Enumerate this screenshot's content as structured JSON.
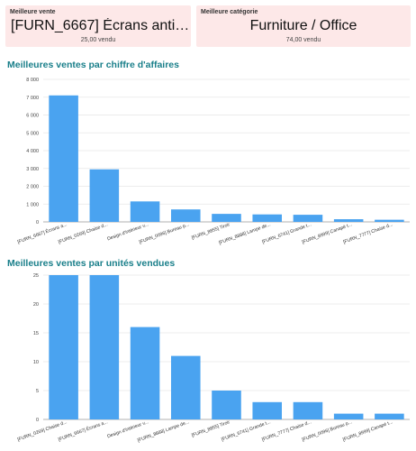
{
  "kpis": [
    {
      "label": "Meilleure vente",
      "value": "[FURN_6667] Écrans anti…",
      "sub": "25,00 vendu"
    },
    {
      "label": "Meilleure catégorie",
      "value": "Furniture / Office",
      "sub": "74,00 vendu"
    }
  ],
  "colors": {
    "accent": "#4aa3f0",
    "title": "#1a7f8a",
    "kpi_bg": "#fde8e8"
  },
  "chart_data": [
    {
      "type": "bar",
      "title": "Meilleures ventes par chiffre d'affaires",
      "xlabel": "",
      "ylabel": "",
      "ylim": [
        0,
        8000
      ],
      "yticks": [
        0,
        1000,
        2000,
        3000,
        4000,
        5000,
        6000,
        7000,
        8000
      ],
      "ytick_labels": [
        "0",
        "1 000",
        "2 000",
        "3 000",
        "4 000",
        "5 000",
        "6 000",
        "7 000",
        "8 000"
      ],
      "categories": [
        "[FURN_6667] Écrans a...",
        "[FURN_0269] Chaise d...",
        "Design d'intérieur v...",
        "[FURN_0096] Bureau p...",
        "[FURN_8855] Tiroir",
        "[FURN_8888] Lampe de...",
        "[FURN_6741] Grande t...",
        "[FURN_8999] Canapé t...",
        "[FURN_7777] Chaise d..."
      ],
      "values": [
        7100,
        2950,
        1150,
        700,
        450,
        420,
        400,
        150,
        120
      ],
      "grid": true
    },
    {
      "type": "bar",
      "title": "Meilleures ventes par unités vendues",
      "xlabel": "",
      "ylabel": "",
      "ylim": [
        0,
        25
      ],
      "yticks": [
        0,
        5,
        10,
        15,
        20,
        25
      ],
      "ytick_labels": [
        "0",
        "5",
        "10",
        "15",
        "20",
        "25"
      ],
      "categories": [
        "[FURN_0269] Chaise d...",
        "[FURN_6667] Écrans a...",
        "Design d'intérieur v...",
        "[FURN_8888] Lampe de...",
        "[FURN_8855] Tiroir",
        "[FURN_6741] Grande t...",
        "[FURN_7777] Chaise d...",
        "[FURN_0096] Bureau p...",
        "[FURN_8999] Canapé t..."
      ],
      "values": [
        25,
        25,
        16,
        11,
        5,
        3,
        3,
        1,
        1
      ],
      "grid": true
    }
  ]
}
